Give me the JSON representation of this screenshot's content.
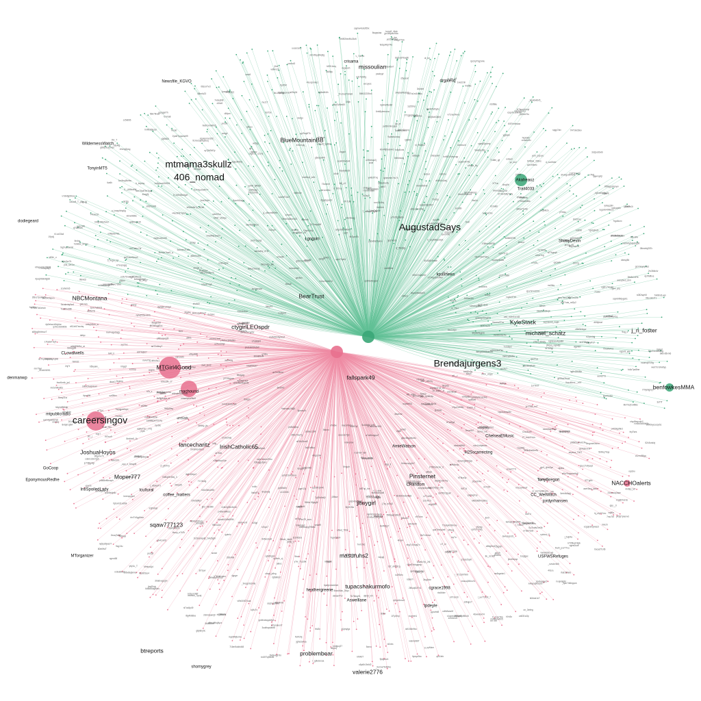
{
  "colors": {
    "background": "#ffffff",
    "green_community": "#3aa677",
    "green_edge": "#5fbf94",
    "pink_community": "#e8708e",
    "pink_edge": "#ef8aa3",
    "label": "#111111"
  },
  "hubs": [
    {
      "id": "hub-green",
      "community": "green"
    },
    {
      "id": "hub-pink",
      "community": "pink"
    }
  ],
  "labels_large": [
    {
      "text": "mtmama3skullz",
      "community": "green"
    },
    {
      "text": "406_nomad",
      "community": "green"
    },
    {
      "text": "AugustadSays",
      "community": "green"
    },
    {
      "text": "Brendajurgens3",
      "community": "green"
    },
    {
      "text": "careersingov",
      "community": "pink"
    }
  ],
  "labels_medium": [
    {
      "text": "missoulian",
      "community": "green"
    },
    {
      "text": "BlueMountainBB",
      "community": "green"
    },
    {
      "text": "NBCMontana",
      "community": "green"
    },
    {
      "text": "BearTrust",
      "community": "green"
    },
    {
      "text": "ctygirlLEOspdr",
      "community": "green"
    },
    {
      "text": "j_n_foster",
      "community": "green"
    },
    {
      "text": "michael_schatz",
      "community": "green"
    },
    {
      "text": "KyleStack",
      "community": "green"
    },
    {
      "text": "benfowkesMMA",
      "community": "green"
    },
    {
      "text": "MTGirl4Good",
      "community": "pink"
    },
    {
      "text": "fallspark49",
      "community": "pink"
    },
    {
      "text": "JoshuaHoyos",
      "community": "pink"
    },
    {
      "text": "Moper777",
      "community": "pink"
    },
    {
      "text": "sqaw777123",
      "community": "pink"
    },
    {
      "text": "masuruhs2",
      "community": "pink"
    },
    {
      "text": "btreports",
      "community": "pink"
    },
    {
      "text": "problembear",
      "community": "pink"
    },
    {
      "text": "valerie2776",
      "community": "pink"
    },
    {
      "text": "tupacshakurmofo",
      "community": "pink"
    },
    {
      "text": "jltwygirl",
      "community": "pink"
    },
    {
      "text": "NACCHOalerts",
      "community": "pink"
    },
    {
      "text": "Pinsternet",
      "community": "pink"
    },
    {
      "text": "IrishCatholic65",
      "community": "pink"
    },
    {
      "text": "lancecharitz",
      "community": "pink"
    }
  ],
  "labels_small": [
    {
      "text": "crisama",
      "community": "green"
    },
    {
      "text": "Trail4033",
      "community": "green"
    },
    {
      "text": "ShimyDevin",
      "community": "green"
    },
    {
      "text": "kpaxnews",
      "community": "green"
    },
    {
      "text": "Lgoguin",
      "community": "green"
    },
    {
      "text": "CLowalwells",
      "community": "green"
    },
    {
      "text": "mtpublicradio",
      "community": "green"
    },
    {
      "text": "Akaheauz",
      "community": "green"
    },
    {
      "text": "dodiegeard",
      "community": "green"
    },
    {
      "text": "TonyinMT5",
      "community": "green"
    },
    {
      "text": "drgalesq",
      "community": "green"
    },
    {
      "text": "Newsfile_KGVO",
      "community": "green"
    },
    {
      "text": "WildernessWatch",
      "community": "green"
    },
    {
      "text": "denmanwp",
      "community": "green"
    },
    {
      "text": "GoCoop",
      "community": "pink"
    },
    {
      "text": "MTorganizer",
      "community": "pink"
    },
    {
      "text": "CC_WetWitch",
      "community": "pink"
    },
    {
      "text": "TonyGregori",
      "community": "pink"
    },
    {
      "text": "jordynhansen",
      "community": "pink"
    },
    {
      "text": "shomygrey",
      "community": "pink"
    },
    {
      "text": "Aswelllane",
      "community": "pink"
    },
    {
      "text": "cgrace1998",
      "community": "pink"
    },
    {
      "text": "USFWSRefuges",
      "community": "pink"
    },
    {
      "text": "ChelseaEMusic",
      "community": "pink"
    },
    {
      "text": "H2Sscarrecting",
      "community": "pink"
    },
    {
      "text": "coffee_matters",
      "community": "pink"
    },
    {
      "text": "CRandom",
      "community": "pink"
    },
    {
      "text": "IntlSpoiledLady",
      "community": "pink"
    },
    {
      "text": "Icultural",
      "community": "pink"
    },
    {
      "text": "heathergreene",
      "community": "pink"
    },
    {
      "text": "AmieWatson",
      "community": "pink"
    },
    {
      "text": "Ipdeyle",
      "community": "pink"
    },
    {
      "text": "EponymousRedhe",
      "community": "pink"
    },
    {
      "text": "machound",
      "community": "pink"
    }
  ]
}
